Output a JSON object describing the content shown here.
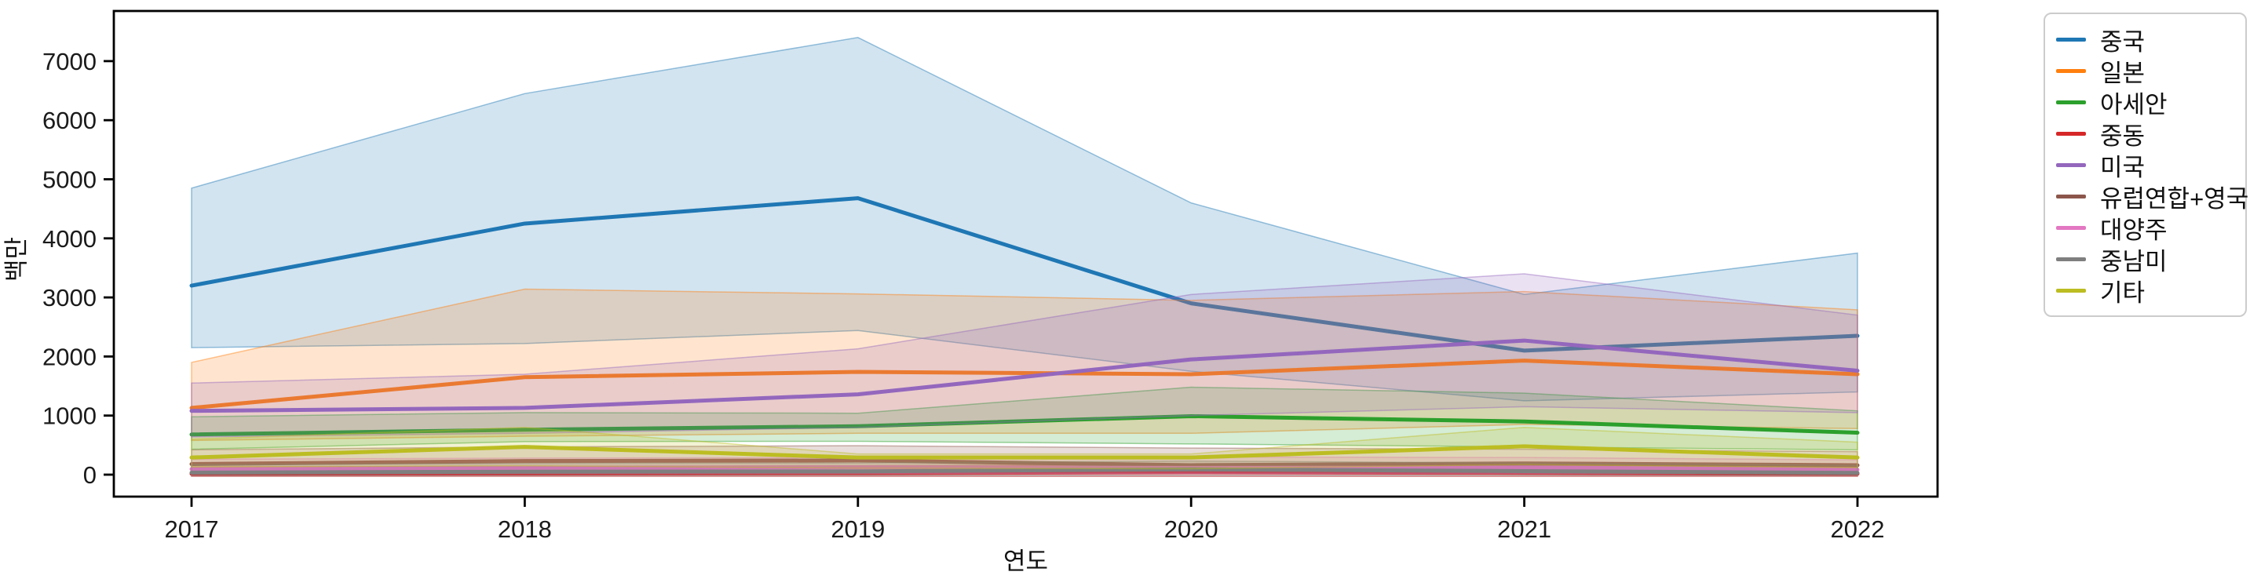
{
  "window": {
    "background_color": "#ffffff"
  },
  "chart_data": {
    "type": "line",
    "title": "",
    "xlabel": "연도",
    "ylabel": "백만",
    "x": [
      2017,
      2018,
      2019,
      2020,
      2021,
      2022
    ],
    "x_tick_labels": [
      "2017",
      "2018",
      "2019",
      "2020",
      "2021",
      "2022"
    ],
    "yticks": [
      0,
      1000,
      2000,
      3000,
      4000,
      5000,
      6000,
      7000
    ],
    "ylim": [
      -372,
      7860
    ],
    "grid": false,
    "legend_position": "outside-upper-right",
    "band_style": "confidence-interval",
    "band_alpha": 0.2,
    "axis_color": "#000000",
    "tick_label_color": "#1a1a1a",
    "legend_border_color": "#cccccc",
    "series": [
      {
        "name": "중국",
        "color": "#1f77b4",
        "values": [
          3200,
          4250,
          4680,
          2900,
          2100,
          2350
        ],
        "band_lower": [
          2150,
          2220,
          2440,
          1750,
          1250,
          1400
        ],
        "band_upper": [
          4850,
          6450,
          7400,
          4600,
          3050,
          3750
        ]
      },
      {
        "name": "일본",
        "color": "#ff7f0e",
        "values": [
          1130,
          1650,
          1740,
          1700,
          1930,
          1700
        ],
        "band_lower": [
          580,
          650,
          700,
          700,
          850,
          780
        ],
        "band_upper": [
          1900,
          3140,
          3060,
          2950,
          3100,
          2790
        ]
      },
      {
        "name": "아세안",
        "color": "#2ca02c",
        "values": [
          680,
          760,
          820,
          990,
          900,
          710
        ],
        "band_lower": [
          430,
          560,
          565,
          520,
          470,
          420
        ],
        "band_upper": [
          980,
          1050,
          1040,
          1480,
          1380,
          1080
        ]
      },
      {
        "name": "중동",
        "color": "#d62728",
        "values": [
          15,
          20,
          25,
          40,
          30,
          15
        ],
        "band_lower": [
          -30,
          -30,
          -30,
          -30,
          -30,
          -30
        ],
        "band_upper": [
          130,
          140,
          150,
          170,
          150,
          120
        ]
      },
      {
        "name": "미국",
        "color": "#9467bd",
        "values": [
          1080,
          1130,
          1360,
          1950,
          2270,
          1760
        ],
        "band_lower": [
          640,
          700,
          800,
          1000,
          1150,
          1050
        ],
        "band_upper": [
          1550,
          1700,
          2130,
          3050,
          3400,
          2700
        ]
      },
      {
        "name": "유럽연합+영국",
        "color": "#8c564b",
        "values": [
          180,
          230,
          240,
          160,
          190,
          160
        ],
        "band_lower": [
          60,
          70,
          80,
          60,
          70,
          50
        ],
        "band_upper": [
          420,
          470,
          490,
          450,
          430,
          390
        ]
      },
      {
        "name": "대양주",
        "color": "#e377c2",
        "values": [
          95,
          115,
          125,
          115,
          120,
          85
        ],
        "band_lower": [
          15,
          20,
          20,
          20,
          20,
          15
        ],
        "band_upper": [
          260,
          280,
          290,
          300,
          290,
          250
        ]
      },
      {
        "name": "중남미",
        "color": "#7f7f7f",
        "values": [
          35,
          50,
          55,
          90,
          60,
          30
        ],
        "band_lower": [
          -20,
          -20,
          -20,
          -20,
          -20,
          -20
        ],
        "band_upper": [
          170,
          190,
          200,
          230,
          200,
          160
        ]
      },
      {
        "name": "기타",
        "color": "#bcbd22",
        "values": [
          290,
          470,
          290,
          290,
          480,
          290
        ],
        "band_lower": [
          130,
          150,
          110,
          100,
          170,
          120
        ],
        "band_upper": [
          600,
          800,
          350,
          350,
          800,
          550
        ]
      }
    ]
  }
}
